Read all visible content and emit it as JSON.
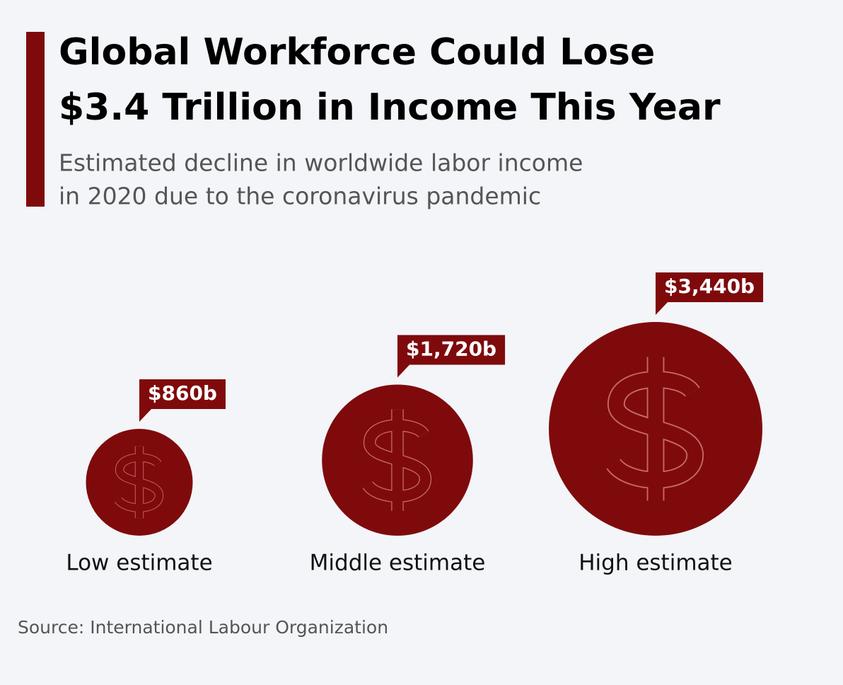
{
  "chart_data": {
    "type": "bubble",
    "title": [
      "Global Workforce Could Lose",
      "$3.4 Trillion in Income This Year"
    ],
    "subtitle": [
      "Estimated decline in worldwide labor income",
      "in 2020 due to the coronavirus pandemic"
    ],
    "categories": [
      "Low estimate",
      "Middle estimate",
      "High estimate"
    ],
    "values": [
      860,
      1720,
      3440
    ],
    "value_labels": [
      "$860b",
      "$1,720b",
      "$3,440b"
    ],
    "color": "#7f0a0c",
    "source": "Source: International Labour Organization"
  }
}
